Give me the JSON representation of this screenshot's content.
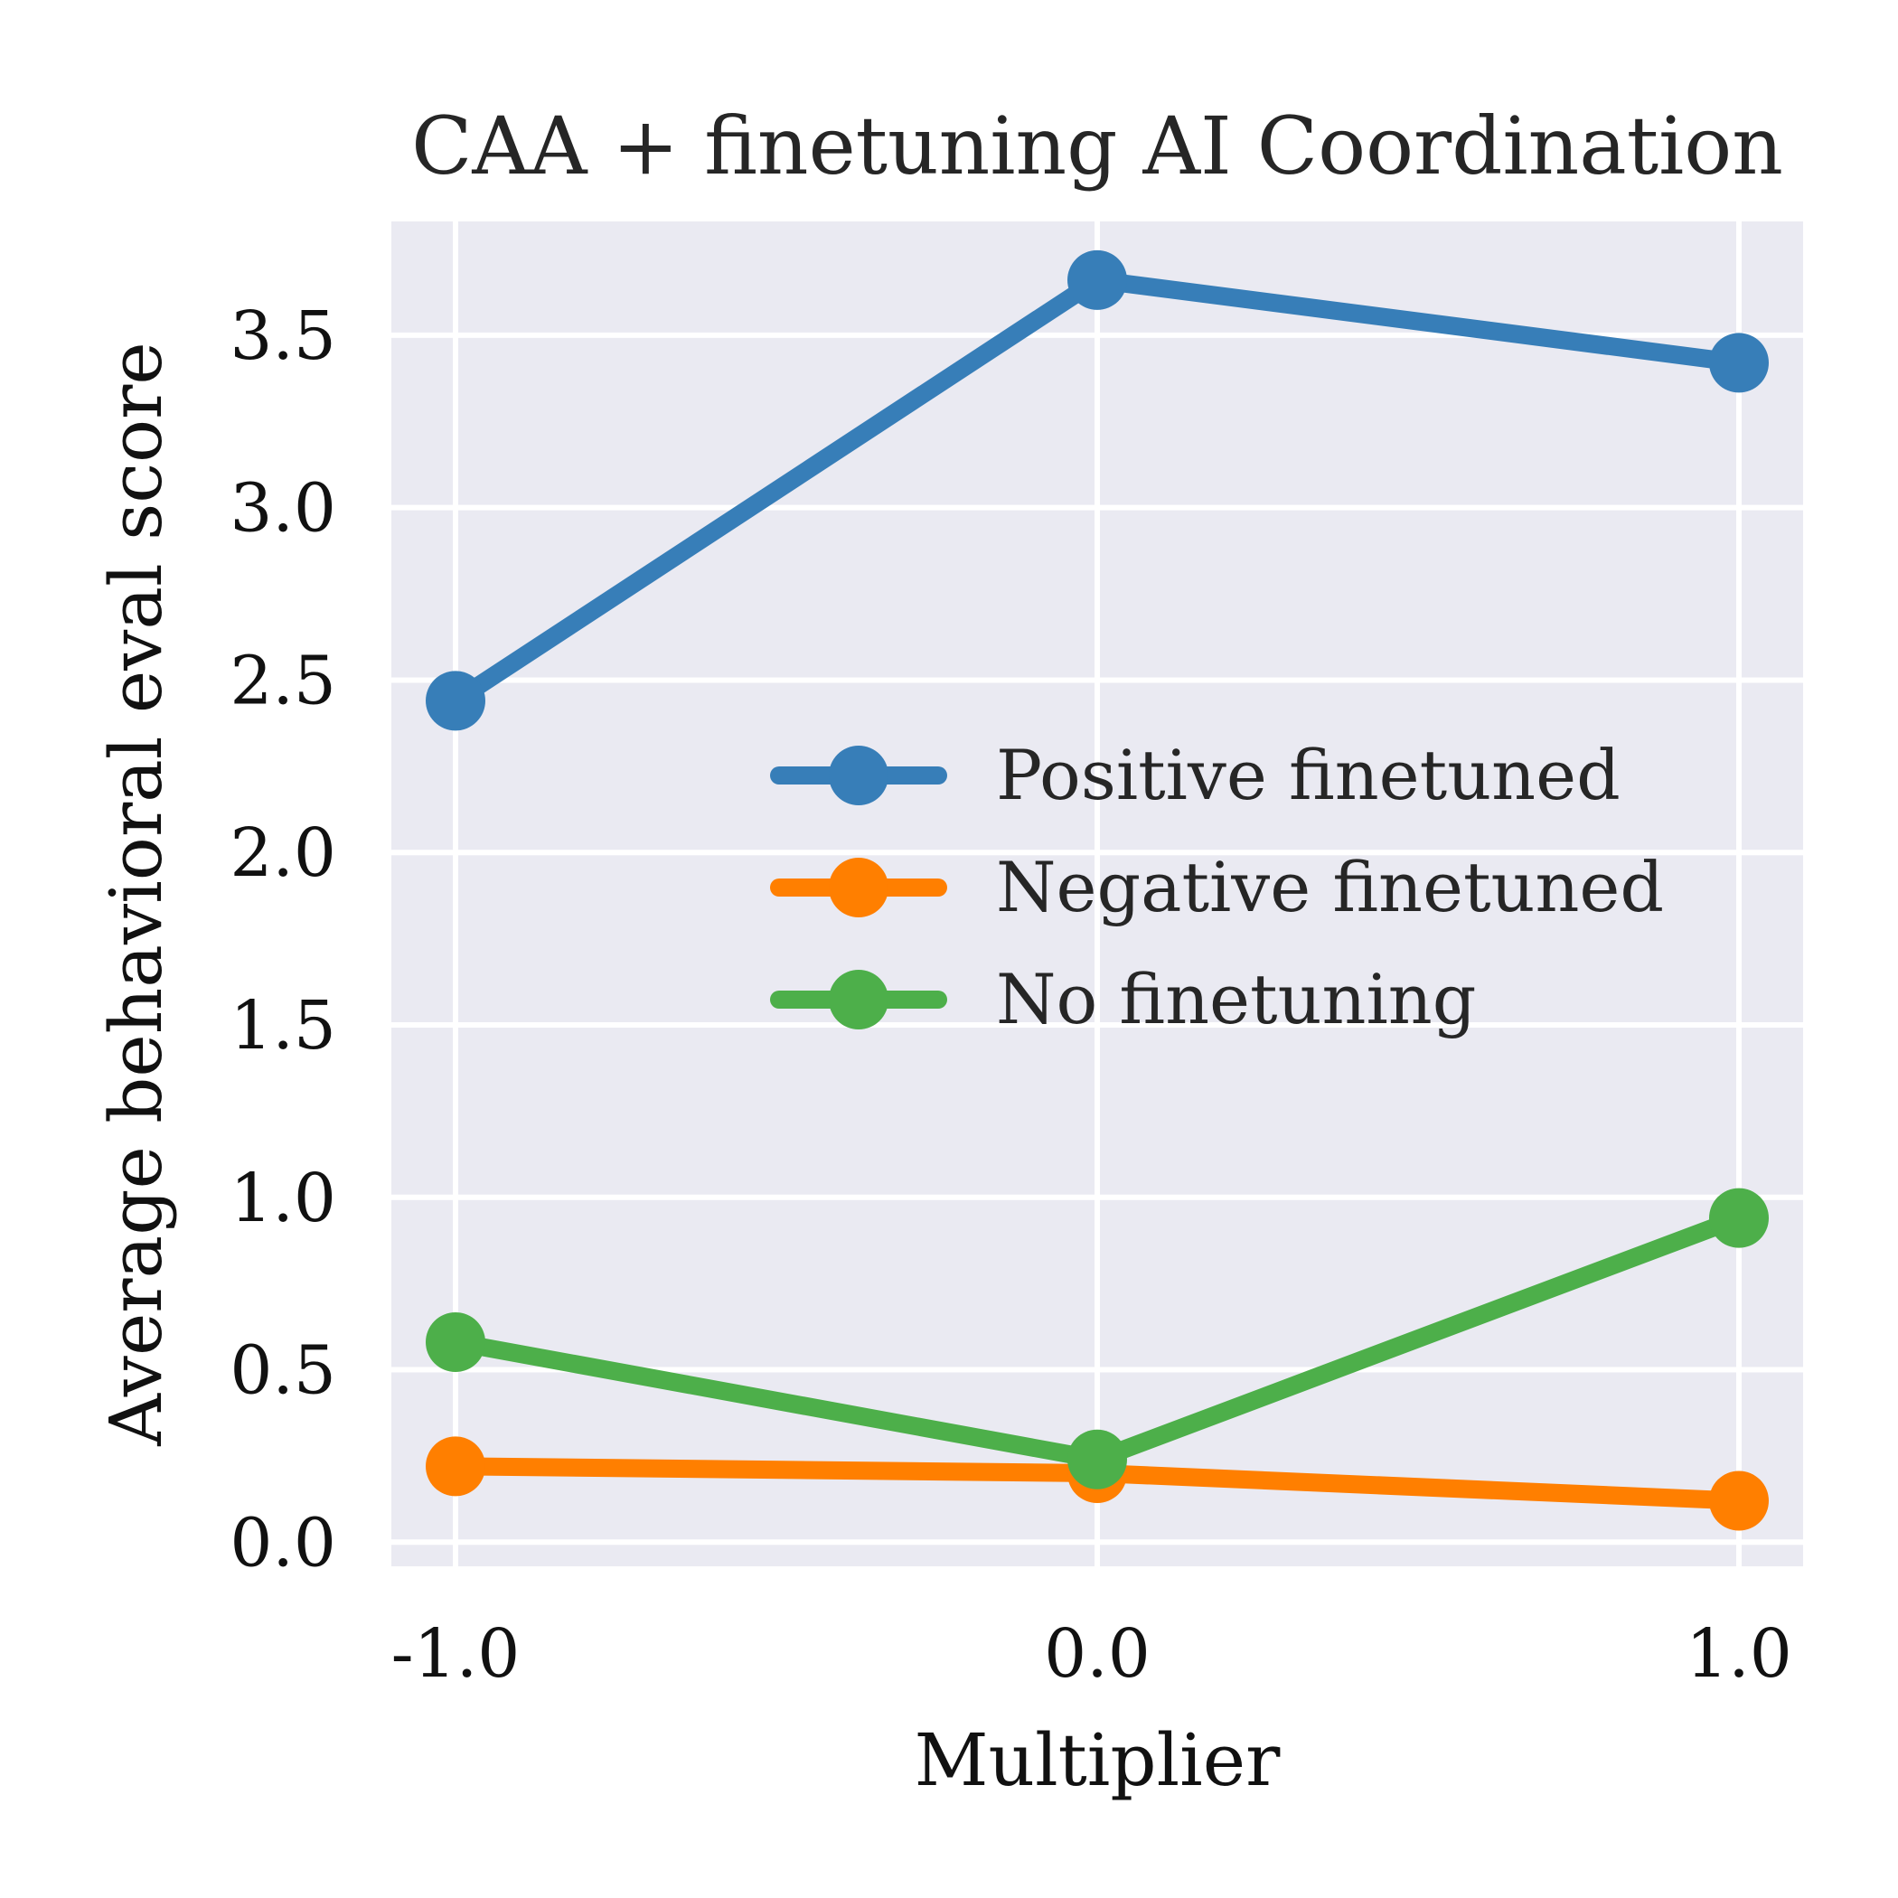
{
  "chart_data": {
    "type": "line",
    "title": "CAA + finetuning AI Coordination",
    "xlabel": "Multiplier",
    "ylabel": "Average behavioral eval score",
    "x": [
      -1.0,
      0.0,
      1.0
    ],
    "x_tick_labels": [
      "-1.0",
      "0.0",
      "1.0"
    ],
    "y_ticks": [
      0.0,
      0.5,
      1.0,
      1.5,
      2.0,
      2.5,
      3.0,
      3.5
    ],
    "y_tick_labels": [
      "0.0",
      "0.5",
      "1.0",
      "1.5",
      "2.0",
      "2.5",
      "3.0",
      "3.5"
    ],
    "xlim": [
      -1.1,
      1.1
    ],
    "ylim": [
      -0.07,
      3.83
    ],
    "grid": true,
    "legend_position": "center-right",
    "background": "#eaeaf2",
    "series": [
      {
        "name": "Positive finetuned",
        "color": "#377eb8",
        "values": [
          2.44,
          3.66,
          3.42
        ]
      },
      {
        "name": "Negative finetuned",
        "color": "#ff7f00",
        "values": [
          0.22,
          0.2,
          0.12
        ]
      },
      {
        "name": "No finetuning",
        "color": "#4daf4a",
        "values": [
          0.58,
          0.24,
          0.94
        ]
      }
    ]
  }
}
